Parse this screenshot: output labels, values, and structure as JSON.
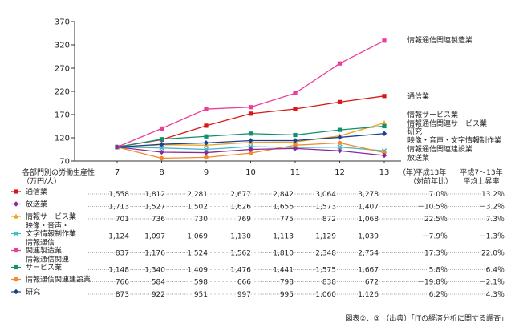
{
  "chart_data": {
    "type": "line",
    "x": [
      "7",
      "8",
      "9",
      "10",
      "11",
      "12",
      "13"
    ],
    "x_unit_label": "（年）",
    "y_axis_label_lines": [
      "各部門別の労働生産性",
      "（万円/人）"
    ],
    "ylim": [
      70,
      370
    ],
    "yticks": [
      70,
      120,
      170,
      220,
      270,
      320,
      370
    ],
    "grid": false,
    "series": [
      {
        "name": "情報通信関連製造業",
        "color": "#ee3c9a",
        "marker": "square",
        "index_values": [
          100,
          140,
          182,
          186,
          216,
          280,
          329
        ],
        "table_label": [
          "情報通信",
          "関連製造業"
        ],
        "table_values": [
          "837",
          "1,176",
          "1,524",
          "1,562",
          "1,810",
          "2,348",
          "2,754"
        ],
        "yoy": "17.3％",
        "avg": "22.0％"
      },
      {
        "name": "通信業",
        "color": "#d81818",
        "marker": "square",
        "index_values": [
          100,
          116,
          146,
          172,
          182,
          197,
          210
        ],
        "table_label": [
          "通信業"
        ],
        "table_values": [
          "1,558",
          "1,812",
          "2,281",
          "2,677",
          "2,842",
          "3,064",
          "3,278"
        ],
        "yoy": "7.0％",
        "avg": "13.2％"
      },
      {
        "name": "情報サービス業",
        "color": "#f0a020",
        "marker": "triangle",
        "index_values": [
          100,
          105,
          104,
          110,
          111,
          124,
          152
        ],
        "table_label": [
          "情報サービス業"
        ],
        "table_values": [
          "701",
          "736",
          "730",
          "769",
          "775",
          "872",
          "1,068"
        ],
        "yoy": "22.5％",
        "avg": "7.3％"
      },
      {
        "name": "情報通信関連サービス業",
        "color": "#0f9070",
        "marker": "square",
        "index_values": [
          100,
          117,
          123,
          129,
          126,
          137,
          145
        ],
        "table_label": [
          "情報通信関連",
          "サービス業"
        ],
        "table_values": [
          "1,148",
          "1,340",
          "1,409",
          "1,476",
          "1,441",
          "1,575",
          "1,667"
        ],
        "yoy": "5.8％",
        "avg": "6.4％"
      },
      {
        "name": "研究",
        "color": "#1c3f96",
        "marker": "diamond",
        "index_values": [
          100,
          106,
          109,
          114,
          114,
          121,
          129
        ],
        "table_label": [
          "研究"
        ],
        "table_values": [
          "873",
          "922",
          "951",
          "997",
          "995",
          "1,060",
          "1,126"
        ],
        "yoy": "6.2％",
        "avg": "4.3％"
      },
      {
        "name": "映像・音声・文字情報制作業",
        "color": "#40b8cc",
        "marker": "x",
        "index_values": [
          100,
          98,
          95,
          101,
          99,
          100,
          92
        ],
        "table_label": [
          "映像・音声・",
          "文字情報制作業"
        ],
        "table_values": [
          "1,124",
          "1,097",
          "1,069",
          "1,130",
          "1,113",
          "1,129",
          "1,039"
        ],
        "yoy": "－7.9％",
        "avg": "－1.3％"
      },
      {
        "name": "情報通信関連建設業",
        "color": "#f08a2c",
        "marker": "circle",
        "index_values": [
          100,
          76,
          78,
          87,
          104,
          109,
          88
        ],
        "table_label": [
          "情報通信関連建設業"
        ],
        "table_values": [
          "766",
          "584",
          "598",
          "666",
          "798",
          "838",
          "672"
        ],
        "yoy": "－19.8％",
        "avg": "－2.1％"
      },
      {
        "name": "放送業",
        "color": "#8a2a9a",
        "marker": "diamond",
        "index_values": [
          100,
          89,
          88,
          95,
          97,
          92,
          82
        ],
        "table_label": [
          "放送業"
        ],
        "table_values": [
          "1,713",
          "1,527",
          "1,502",
          "1,626",
          "1,656",
          "1,573",
          "1,407"
        ],
        "yoy": "－10.5％",
        "avg": "－3.2％"
      }
    ],
    "right_labels": [
      "情報通信関連製造業",
      "通信業",
      "情報サービス業",
      "情報通信関連サービス業",
      "研究",
      "映像・音声・文字情報制作業",
      "情報通信関連建設業",
      "放送業"
    ],
    "table_order": [
      "通信業",
      "放送業",
      "情報サービス業",
      "映像・音声・文字情報制作業",
      "情報通信関連製造業",
      "情報通信関連サービス業",
      "情報通信関連建設業",
      "研究"
    ],
    "table_headers": {
      "yoy": [
        "平成13年",
        "（対前年比）"
      ],
      "avg": [
        "平成7～13年",
        "平均上昇率"
      ]
    }
  },
  "footer": "図表②、③ （出典）「ITの経済分析に関する調査」"
}
